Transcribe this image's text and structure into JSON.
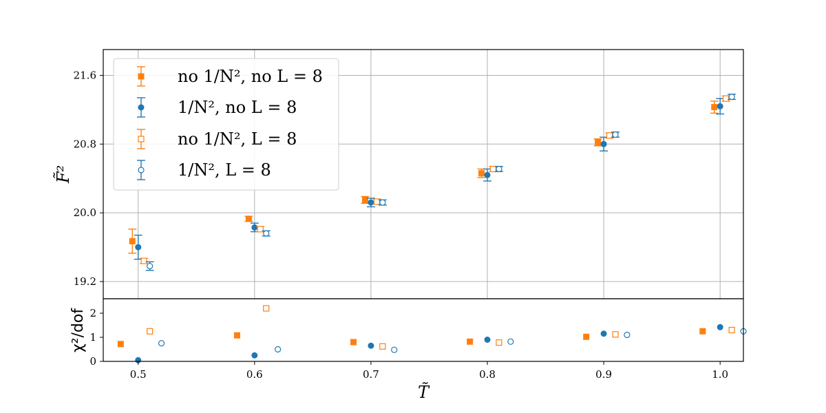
{
  "colors": {
    "orange": "#ff7f0e",
    "blue": "#1f77b4",
    "grid": "#b0b0b0"
  },
  "chart_data": {
    "type": "scatter",
    "xlabel": "T̃",
    "x_ticks": [
      "0.5",
      "0.6",
      "0.7",
      "0.8",
      "0.9",
      "1.0"
    ],
    "xlim": [
      0.47,
      1.02
    ],
    "legend_placement": "top-left",
    "series_meta": [
      {
        "name": "no 1/N², no L = 8",
        "color": "#ff7f0e",
        "marker": "square",
        "filled": true,
        "offset": -0.005
      },
      {
        "name": "1/N², no L = 8",
        "color": "#1f77b4",
        "marker": "circle",
        "filled": true,
        "offset": 0.0
      },
      {
        "name": "no 1/N², L = 8",
        "color": "#ff7f0e",
        "marker": "square",
        "filled": false,
        "offset": 0.005
      },
      {
        "name": "1/N², L = 8",
        "color": "#1f77b4",
        "marker": "circle",
        "filled": false,
        "offset": 0.01
      }
    ],
    "x": [
      0.5,
      0.6,
      0.7,
      0.8,
      0.9,
      1.0
    ],
    "panels": [
      {
        "ylabel": "F̃²",
        "ylim": [
          19.0,
          21.9
        ],
        "y_ticks": [
          19.2,
          20.0,
          20.8,
          21.6
        ],
        "grid": true,
        "series": [
          {
            "values": [
              19.67,
              19.93,
              20.15,
              20.46,
              20.82,
              21.23
            ],
            "errors": [
              0.14,
              0.03,
              0.04,
              0.05,
              0.04,
              0.07
            ]
          },
          {
            "values": [
              19.6,
              19.83,
              20.12,
              20.44,
              20.8,
              21.24
            ],
            "errors": [
              0.14,
              0.05,
              0.05,
              0.07,
              0.08,
              0.09
            ]
          },
          {
            "values": [
              19.44,
              19.81,
              20.13,
              20.51,
              20.9,
              21.33
            ],
            "errors": [
              0.03,
              0.03,
              0.03,
              0.03,
              0.03,
              0.03
            ]
          },
          {
            "values": [
              19.38,
              19.76,
              20.12,
              20.51,
              20.91,
              21.35
            ],
            "errors": [
              0.05,
              0.03,
              0.03,
              0.03,
              0.03,
              0.03
            ]
          }
        ]
      },
      {
        "ylabel": "χ²/dof",
        "ylim": [
          0,
          2.6
        ],
        "y_ticks": [
          0,
          1,
          2
        ],
        "grid": false,
        "series": [
          {
            "values": [
              0.72,
              1.08,
              0.8,
              0.82,
              1.02,
              1.25
            ]
          },
          {
            "values": [
              0.05,
              0.25,
              0.65,
              0.9,
              1.15,
              1.42
            ]
          },
          {
            "values": [
              1.25,
              2.2,
              0.62,
              0.78,
              1.12,
              1.3
            ]
          },
          {
            "values": [
              0.75,
              0.5,
              0.48,
              0.82,
              1.1,
              1.25
            ]
          }
        ]
      }
    ]
  }
}
